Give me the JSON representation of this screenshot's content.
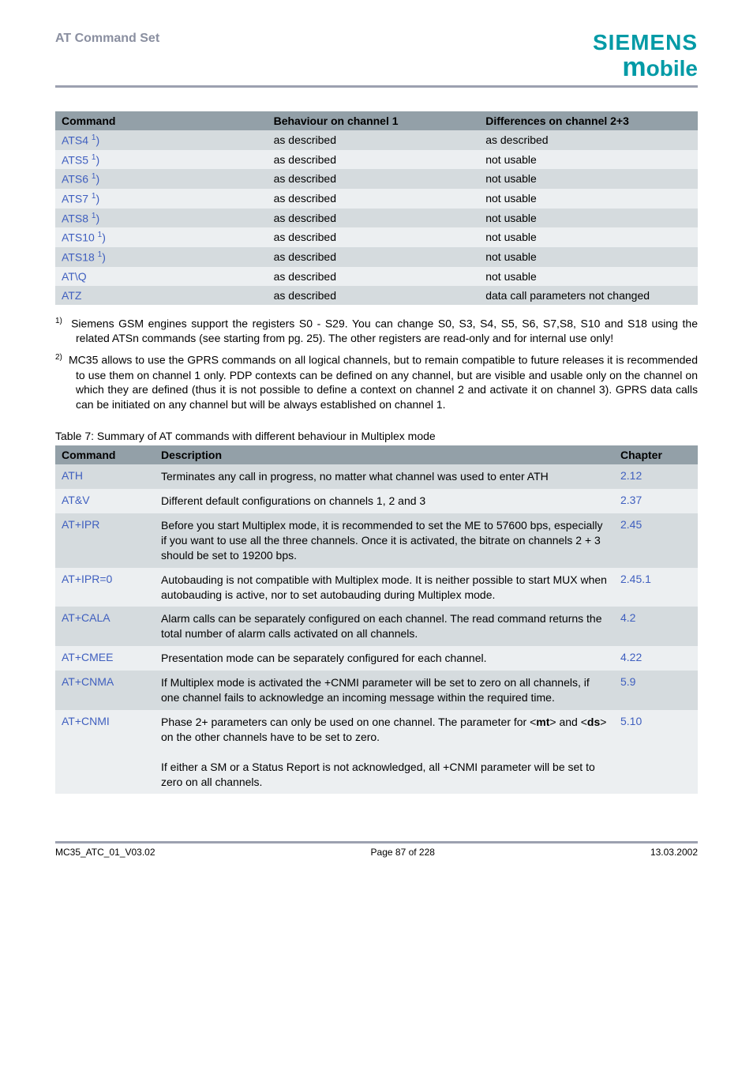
{
  "header": {
    "doc_title": "AT Command Set",
    "brand_top": "SIEMENS",
    "brand_bottom_m": "m",
    "brand_bottom_rest": "obile"
  },
  "table1": {
    "headers": [
      "Command",
      "Behaviour on channel 1",
      "Differences on channel 2+3"
    ],
    "rows": [
      {
        "cmd": "ATS4",
        "sup": "1",
        "paren": ")",
        "b1": "as described",
        "b2": "as described"
      },
      {
        "cmd": "ATS5",
        "sup": "1",
        "paren": ")",
        "b1": "as described",
        "b2": "not usable"
      },
      {
        "cmd": "ATS6",
        "sup": "1",
        "paren": ")",
        "b1": "as described",
        "b2": "not usable"
      },
      {
        "cmd": "ATS7",
        "sup": "1",
        "paren": ")",
        "b1": "as described",
        "b2": "not usable"
      },
      {
        "cmd": "ATS8",
        "sup": "1",
        "paren": ")",
        "b1": "as described",
        "b2": "not usable"
      },
      {
        "cmd": "ATS10",
        "sup": "1",
        "paren": ")",
        "b1": "as described",
        "b2": "not usable"
      },
      {
        "cmd": "ATS18",
        "sup": "1",
        "paren": ")",
        "b1": "as described",
        "b2": "not usable"
      },
      {
        "cmd": "AT\\Q",
        "sup": "",
        "paren": "",
        "b1": "as described",
        "b2": "not usable"
      },
      {
        "cmd": "ATZ",
        "sup": "",
        "paren": "",
        "b1": "as described",
        "b2": "data call parameters not changed"
      }
    ]
  },
  "footnotes": {
    "fn1_num": "1)",
    "fn1_text": "Siemens GSM engines support the registers S0 - S29. You can change S0, S3, S4, S5, S6, S7,S8, S10 and S18 using the related ATSn commands (see starting from pg. 25). The other registers are read-only and for internal use only!",
    "fn2_num": "2)",
    "fn2_text": "MC35 allows to use the GPRS commands on all logical channels, but to remain compatible to future releases it is recommended to use them on channel 1 only. PDP contexts can be defined on any channel, but  are visible and usable only on the channel on which they are defined (thus it is not possible to define a context on channel 2 and activate it on channel 3). GPRS data calls can be initiated on any channel but will be always established on channel 1."
  },
  "table2": {
    "caption": "Table 7:  Summary of AT commands with different behaviour in Multiplex mode",
    "headers": [
      "Command",
      "Description",
      "Chapter"
    ],
    "rows": [
      {
        "cmd": "ATH",
        "desc": "Terminates any call in progress, no matter what channel was used to enter ATH",
        "ch": "2.12"
      },
      {
        "cmd": "AT&V",
        "desc": "Different default configurations on channels 1, 2 and 3",
        "ch": "2.37"
      },
      {
        "cmd": "AT+IPR",
        "desc": "Before you start Multiplex mode, it is recommended to set the ME to 57600 bps, especially if you want to use all the three channels. Once it is activated, the bitrate on channels 2 + 3 should be set to 19200 bps.",
        "ch": "2.45"
      },
      {
        "cmd": "AT+IPR=0",
        "desc": "Autobauding is not compatible with Multiplex mode. It is neither possible to start MUX when autobauding is active, nor to set autobauding during Multiplex mode.",
        "ch": "2.45.1"
      },
      {
        "cmd": "AT+CALA",
        "desc": "Alarm calls can be separately configured on each channel. The read command returns the total number of alarm calls activated on all channels.",
        "ch": "4.2"
      },
      {
        "cmd": "AT+CMEE",
        "desc": "Presentation mode can be separately configured for each channel.",
        "ch": "4.22"
      },
      {
        "cmd": "AT+CNMA",
        "desc": "If Multiplex mode is activated the +CNMI parameter will be set to zero on all channels, if one channel fails to acknowledge an incoming message within the required time.",
        "ch": "5.9"
      },
      {
        "cmd": "AT+CNMI",
        "desc_html": "Phase 2+ parameters can only be used on one channel. The parameter for &lt;<b>mt</b>&gt; and &lt;<b>ds</b>&gt; on the other channels have to be set to zero.<br><br>If either a SM or a Status Report is not acknowledged, all +CNMI parameter will be set to zero on all channels.",
        "ch": "5.10"
      }
    ]
  },
  "footer": {
    "left": "MC35_ATC_01_V03.02",
    "center": "Page 87 of 228",
    "right": "13.03.2002"
  }
}
